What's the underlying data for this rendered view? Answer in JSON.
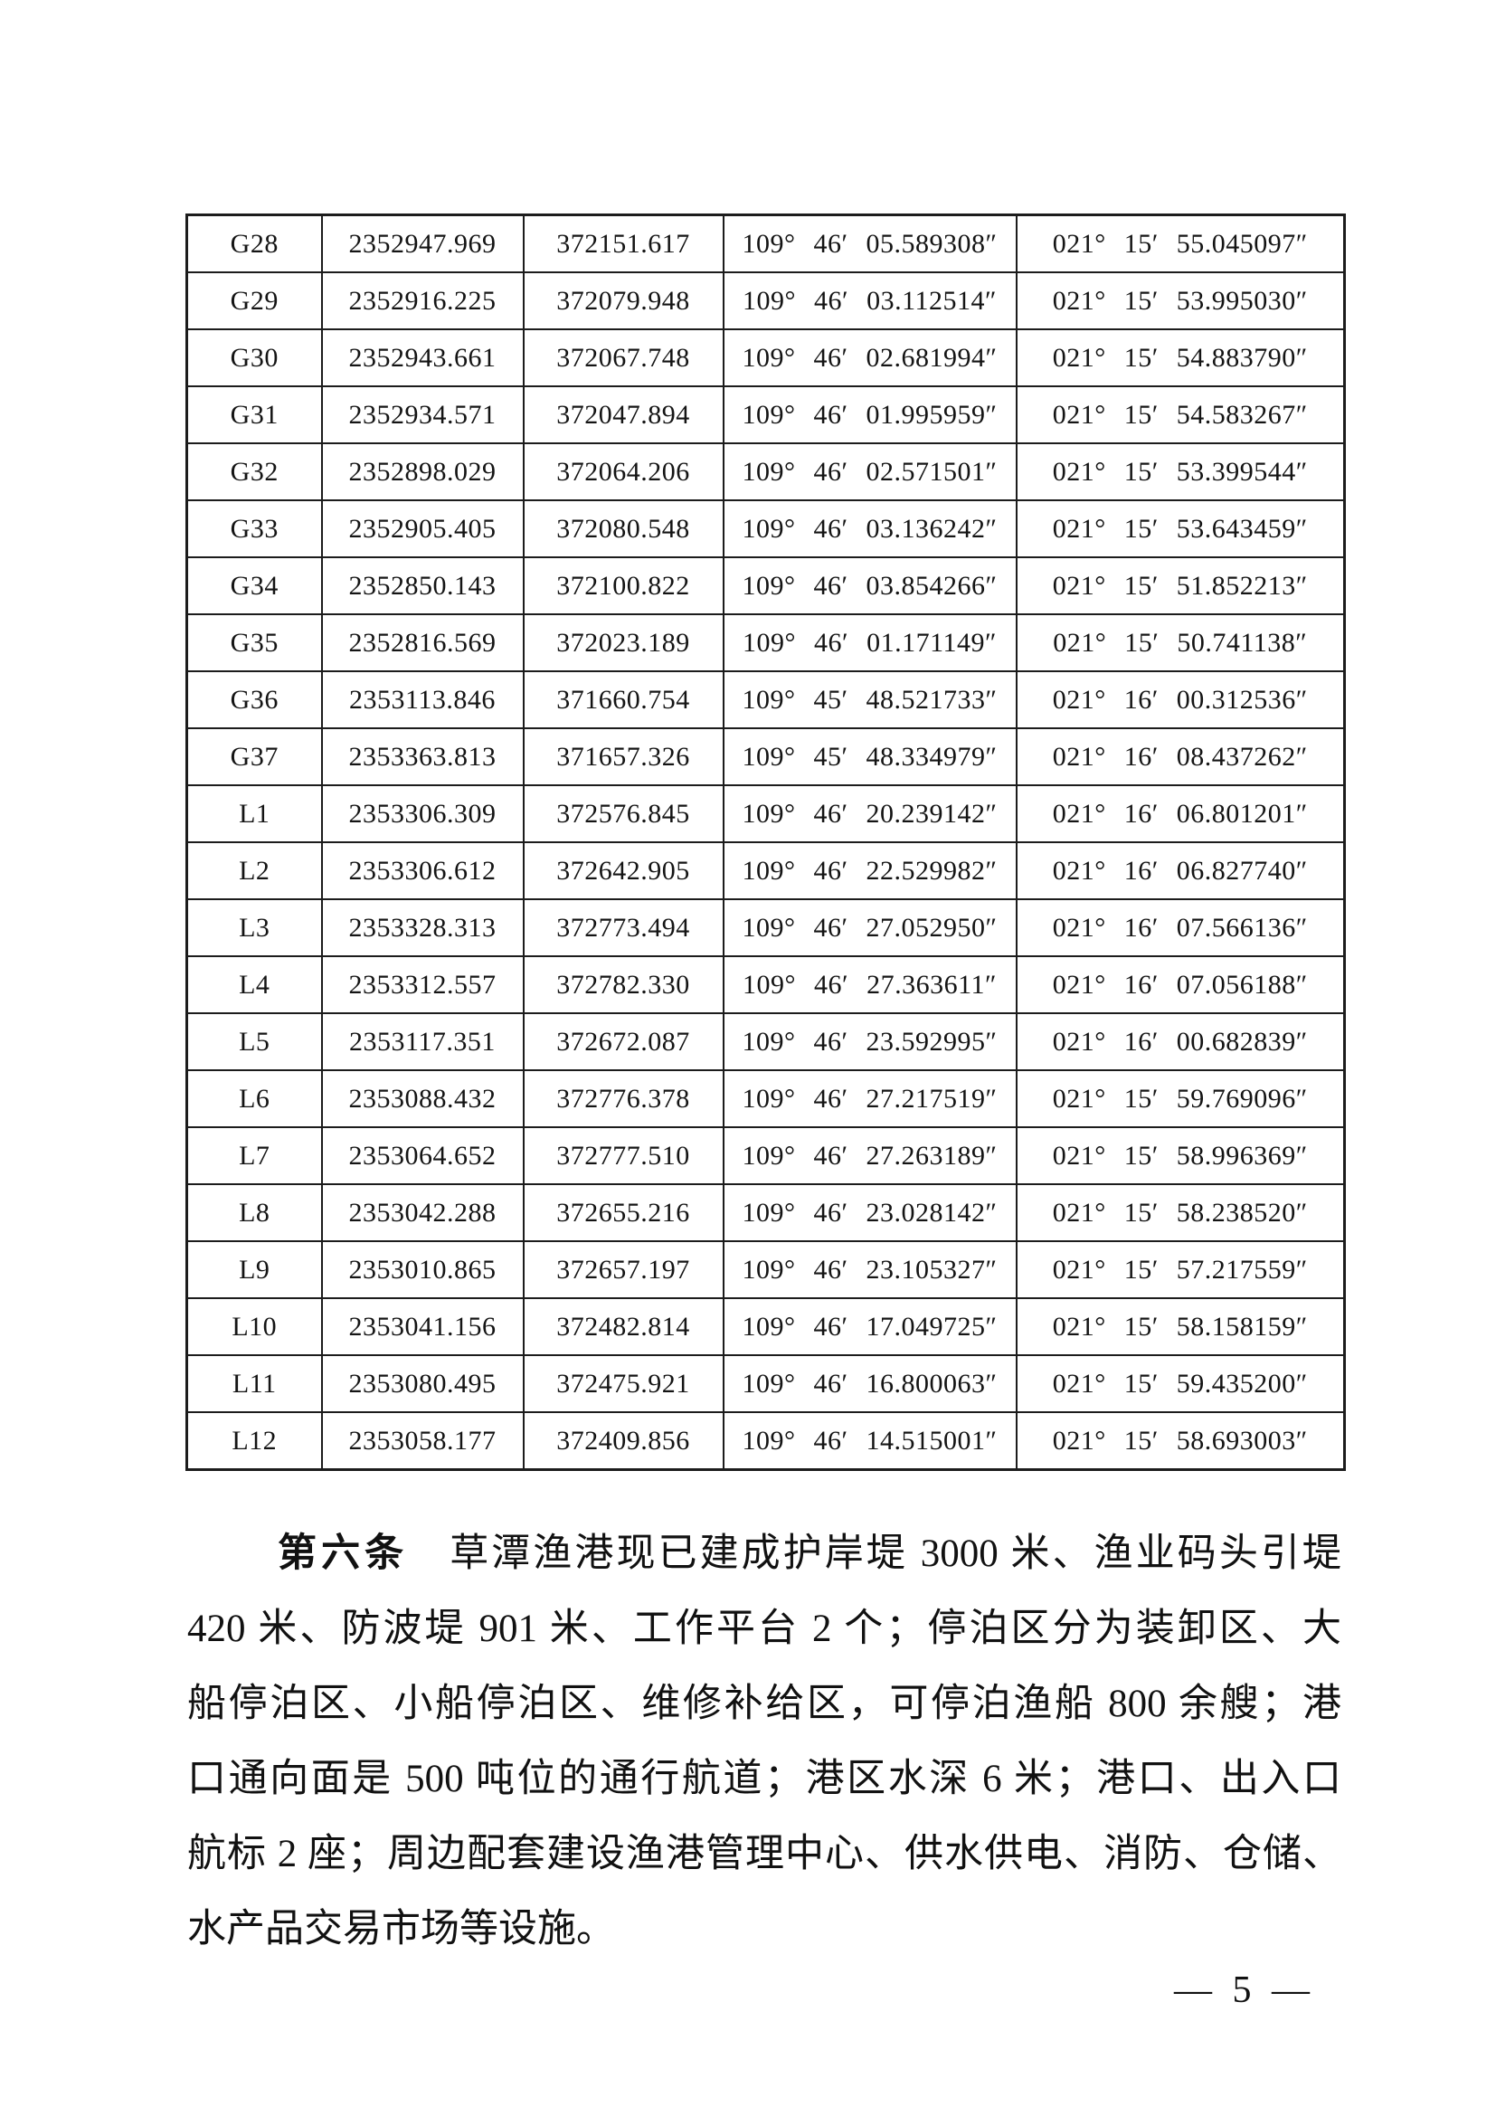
{
  "table": {
    "rows": [
      {
        "id": "G28",
        "x": "2352947.969",
        "y": "372151.617",
        "lon": "109° 46′ 05.589308″",
        "lat": "021° 15′ 55.045097″"
      },
      {
        "id": "G29",
        "x": "2352916.225",
        "y": "372079.948",
        "lon": "109° 46′ 03.112514″",
        "lat": "021° 15′ 53.995030″"
      },
      {
        "id": "G30",
        "x": "2352943.661",
        "y": "372067.748",
        "lon": "109° 46′ 02.681994″",
        "lat": "021° 15′ 54.883790″"
      },
      {
        "id": "G31",
        "x": "2352934.571",
        "y": "372047.894",
        "lon": "109° 46′ 01.995959″",
        "lat": "021° 15′ 54.583267″"
      },
      {
        "id": "G32",
        "x": "2352898.029",
        "y": "372064.206",
        "lon": "109° 46′ 02.571501″",
        "lat": "021° 15′ 53.399544″"
      },
      {
        "id": "G33",
        "x": "2352905.405",
        "y": "372080.548",
        "lon": "109° 46′ 03.136242″",
        "lat": "021° 15′ 53.643459″"
      },
      {
        "id": "G34",
        "x": "2352850.143",
        "y": "372100.822",
        "lon": "109° 46′ 03.854266″",
        "lat": "021° 15′ 51.852213″"
      },
      {
        "id": "G35",
        "x": "2352816.569",
        "y": "372023.189",
        "lon": "109° 46′ 01.171149″",
        "lat": "021° 15′ 50.741138″"
      },
      {
        "id": "G36",
        "x": "2353113.846",
        "y": "371660.754",
        "lon": "109° 45′ 48.521733″",
        "lat": "021° 16′ 00.312536″"
      },
      {
        "id": "G37",
        "x": "2353363.813",
        "y": "371657.326",
        "lon": "109° 45′ 48.334979″",
        "lat": "021° 16′ 08.437262″"
      },
      {
        "id": "L1",
        "x": "2353306.309",
        "y": "372576.845",
        "lon": "109° 46′ 20.239142″",
        "lat": "021° 16′ 06.801201″"
      },
      {
        "id": "L2",
        "x": "2353306.612",
        "y": "372642.905",
        "lon": "109° 46′ 22.529982″",
        "lat": "021° 16′ 06.827740″"
      },
      {
        "id": "L3",
        "x": "2353328.313",
        "y": "372773.494",
        "lon": "109° 46′ 27.052950″",
        "lat": "021° 16′ 07.566136″"
      },
      {
        "id": "L4",
        "x": "2353312.557",
        "y": "372782.330",
        "lon": "109° 46′ 27.363611″",
        "lat": "021° 16′ 07.056188″"
      },
      {
        "id": "L5",
        "x": "2353117.351",
        "y": "372672.087",
        "lon": "109° 46′ 23.592995″",
        "lat": "021° 16′ 00.682839″"
      },
      {
        "id": "L6",
        "x": "2353088.432",
        "y": "372776.378",
        "lon": "109° 46′ 27.217519″",
        "lat": "021° 15′ 59.769096″"
      },
      {
        "id": "L7",
        "x": "2353064.652",
        "y": "372777.510",
        "lon": "109° 46′ 27.263189″",
        "lat": "021° 15′ 58.996369″"
      },
      {
        "id": "L8",
        "x": "2353042.288",
        "y": "372655.216",
        "lon": "109° 46′ 23.028142″",
        "lat": "021° 15′ 58.238520″"
      },
      {
        "id": "L9",
        "x": "2353010.865",
        "y": "372657.197",
        "lon": "109° 46′ 23.105327″",
        "lat": "021° 15′ 57.217559″"
      },
      {
        "id": "L10",
        "x": "2353041.156",
        "y": "372482.814",
        "lon": "109° 46′ 17.049725″",
        "lat": "021° 15′ 58.158159″"
      },
      {
        "id": "L11",
        "x": "2353080.495",
        "y": "372475.921",
        "lon": "109° 46′ 16.800063″",
        "lat": "021° 15′ 59.435200″"
      },
      {
        "id": "L12",
        "x": "2353058.177",
        "y": "372409.856",
        "lon": "109° 46′ 14.515001″",
        "lat": "021° 15′ 58.693003″"
      }
    ]
  },
  "paragraph": {
    "heading": "第六条",
    "lines": [
      "草潭渔港现已建成护岸堤 3000 米、渔业码头引堤",
      "420 米、防波堤 901 米、工作平台 2 个；停泊区分为装卸区、大",
      "船停泊区、小船停泊区、维修补给区，可停泊渔船 800 余艘；港",
      "口通向面是 500 吨位的通行航道；港区水深 6 米；港口、出入口",
      "航标 2 座；周边配套建设渔港管理中心、供水供电、消防、仓储、",
      "水产品交易市场等设施。"
    ]
  },
  "footer": {
    "page_number": "— 5 —"
  }
}
